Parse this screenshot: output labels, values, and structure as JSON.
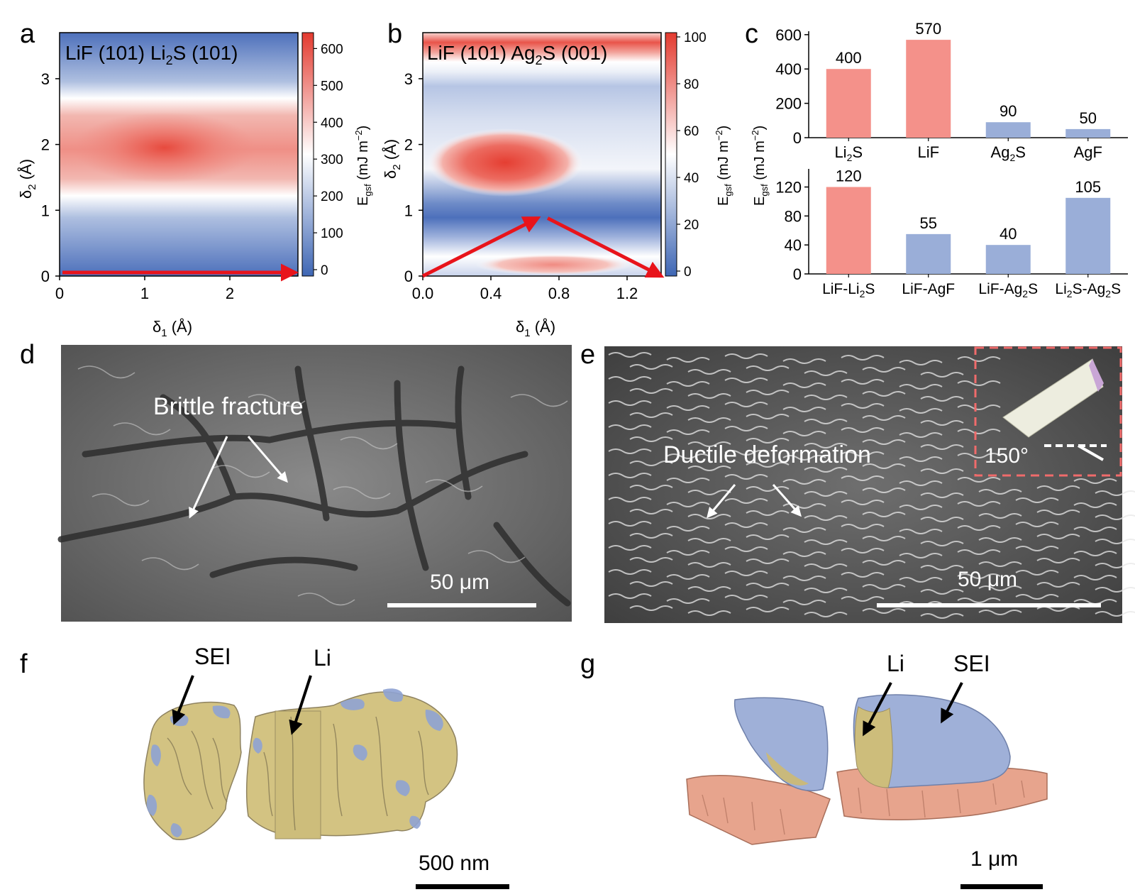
{
  "panels": {
    "a": {
      "letter": "a",
      "title": "LiF (101) Li",
      "title_sub": "2",
      "title_rest": "S (101)",
      "xlabel": "δ",
      "xlabel_sub": "1",
      "xlabel_unit": " (Å)",
      "ylabel": "δ",
      "ylabel_sub": "2",
      "ylabel_unit": " (Å)",
      "xticks": [
        "0",
        "1",
        "2"
      ],
      "yticks": [
        "0",
        "1",
        "2",
        "3"
      ],
      "cbar_label": "E",
      "cbar_label_sub": "gsf",
      "cbar_unit": " (mJ m",
      "cbar_unit_sup": "−2",
      "cbar_unit_end": ")",
      "cbar_ticks": [
        "0",
        "100",
        "200",
        "300",
        "400",
        "500",
        "600"
      ]
    },
    "b": {
      "letter": "b",
      "title": "LiF (101) Ag",
      "title_sub": "2",
      "title_rest": "S (001)",
      "xlabel": "δ",
      "xlabel_sub": "1",
      "xlabel_unit": " (Å)",
      "ylabel": "δ",
      "ylabel_sub": "2",
      "ylabel_unit": " (Å)",
      "xticks": [
        "0.0",
        "0.4",
        "0.8",
        "1.2"
      ],
      "yticks": [
        "0",
        "1",
        "2",
        "3"
      ],
      "cbar_label": "E",
      "cbar_label_sub": "gsf",
      "cbar_unit": " (mJ m",
      "cbar_unit_sup": "−2",
      "cbar_unit_end": ")",
      "cbar_ticks": [
        "0",
        "20",
        "40",
        "60",
        "80",
        "100"
      ]
    },
    "c": {
      "letter": "c",
      "ylabel": "E",
      "ylabel_sub": "gsf",
      "ylabel_unit": " (mJ m",
      "ylabel_sup": "−2",
      "ylabel_end": ")"
    },
    "d": {
      "letter": "d",
      "annotation": "Brittle fracture",
      "scale": "50 μm"
    },
    "e": {
      "letter": "e",
      "annotation": "Ductile deformation",
      "scale": "50 μm",
      "inset_angle": "150°"
    },
    "f": {
      "letter": "f",
      "label_sei": "SEI",
      "label_li": "Li",
      "scale": "500 nm"
    },
    "g": {
      "letter": "g",
      "label_sei": "SEI",
      "label_li": "Li",
      "scale": "1 μm"
    }
  },
  "colors": {
    "red": "#f4918a",
    "blue": "#9aaed8",
    "arrow": "#e8141b",
    "gold": "#cfbd7c",
    "copper": "#e6a08a"
  },
  "chart_data": [
    {
      "type": "heatmap",
      "panel": "a",
      "title": "LiF (101) Li2S (101)",
      "xlabel": "δ1 (Å)",
      "ylabel": "δ2 (Å)",
      "colorbar": "Egsf (mJ m−2)",
      "xlim": [
        0,
        2.8
      ],
      "ylim": [
        0,
        3.7
      ],
      "zlim": [
        0,
        620
      ],
      "colormap": "blue-white-red",
      "max_at": [
        1.3,
        2.1
      ],
      "path": [
        {
          "x": 0,
          "y": 0
        },
        {
          "x": 2.8,
          "y": 0
        }
      ]
    },
    {
      "type": "heatmap",
      "panel": "b",
      "title": "LiF (101) Ag2S (001)",
      "xlabel": "δ1 (Å)",
      "ylabel": "δ2 (Å)",
      "colorbar": "Egsf (mJ m−2)",
      "xlim": [
        0,
        1.4
      ],
      "ylim": [
        0,
        3.7
      ],
      "zlim": [
        0,
        100
      ],
      "colormap": "blue-white-red",
      "max_at": [
        0.45,
        1.75
      ],
      "path": [
        {
          "x": 0,
          "y": 0
        },
        {
          "x": 0.7,
          "y": 0.88
        },
        {
          "x": 1.4,
          "y": 0
        }
      ]
    },
    {
      "type": "bar",
      "panel": "c-top",
      "categories": [
        "Li2S",
        "LiF",
        "Ag2S",
        "AgF"
      ],
      "values": [
        400,
        570,
        90,
        50
      ],
      "bar_colors": [
        "#f4918a",
        "#f4918a",
        "#9aaed8",
        "#9aaed8"
      ],
      "yticks": [
        "0",
        "200",
        "400",
        "600"
      ],
      "ylim": [
        0,
        620
      ]
    },
    {
      "type": "bar",
      "panel": "c-bottom",
      "categories": [
        "LiF-Li2S",
        "LiF-AgF",
        "LiF-Ag2S",
        "Li2S-Ag2S"
      ],
      "values": [
        120,
        55,
        40,
        105
      ],
      "bar_colors": [
        "#f4918a",
        "#9aaed8",
        "#9aaed8",
        "#9aaed8"
      ],
      "yticks": [
        "0",
        "40",
        "80",
        "120"
      ],
      "ylim": [
        0,
        145
      ]
    }
  ]
}
